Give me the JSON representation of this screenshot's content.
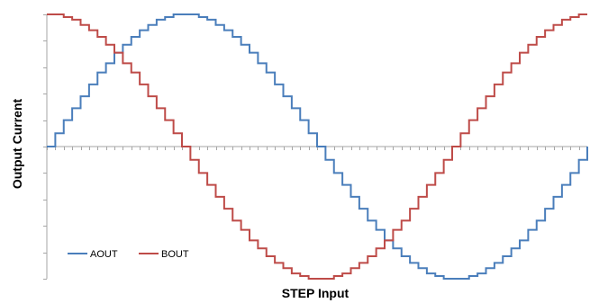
{
  "chart_data": {
    "type": "line",
    "style": "step",
    "xlabel": "STEP Input",
    "ylabel": "Output Current",
    "x": [
      0,
      1,
      2,
      3,
      4,
      5,
      6,
      7,
      8,
      9,
      10,
      11,
      12,
      13,
      14,
      15,
      16,
      17,
      18,
      19,
      20,
      21,
      22,
      23,
      24,
      25,
      26,
      27,
      28,
      29,
      30,
      31,
      32,
      33,
      34,
      35,
      36,
      37,
      38,
      39,
      40,
      41,
      42,
      43,
      44,
      45,
      46,
      47,
      48,
      49,
      50,
      51,
      52,
      53,
      54,
      55,
      56,
      57,
      58,
      59,
      60,
      61,
      62,
      63,
      64
    ],
    "xlim": [
      0,
      64
    ],
    "ylim": [
      -1,
      1
    ],
    "grid": false,
    "x_tick_count": 64,
    "y_tick_step": 0.2,
    "legend_position": "bottom-left",
    "series": [
      {
        "name": "AOUT",
        "color": "#4a7ebb",
        "values": [
          0,
          0.1,
          0.2,
          0.29,
          0.38,
          0.47,
          0.56,
          0.63,
          0.71,
          0.77,
          0.83,
          0.88,
          0.92,
          0.96,
          0.98,
          1.0,
          1.0,
          1.0,
          0.98,
          0.96,
          0.92,
          0.88,
          0.83,
          0.77,
          0.71,
          0.63,
          0.56,
          0.47,
          0.38,
          0.29,
          0.2,
          0.1,
          0,
          -0.1,
          -0.2,
          -0.29,
          -0.38,
          -0.47,
          -0.56,
          -0.63,
          -0.71,
          -0.77,
          -0.83,
          -0.88,
          -0.92,
          -0.96,
          -0.98,
          -1.0,
          -1.0,
          -1.0,
          -0.98,
          -0.96,
          -0.92,
          -0.88,
          -0.83,
          -0.77,
          -0.71,
          -0.63,
          -0.56,
          -0.47,
          -0.38,
          -0.29,
          -0.2,
          -0.1,
          0
        ]
      },
      {
        "name": "BOUT",
        "color": "#be4b48",
        "values": [
          1.0,
          1.0,
          0.98,
          0.96,
          0.92,
          0.88,
          0.83,
          0.77,
          0.71,
          0.63,
          0.56,
          0.47,
          0.38,
          0.29,
          0.2,
          0.1,
          0,
          -0.1,
          -0.2,
          -0.29,
          -0.38,
          -0.47,
          -0.56,
          -0.63,
          -0.71,
          -0.77,
          -0.83,
          -0.88,
          -0.92,
          -0.96,
          -0.98,
          -1.0,
          -1.0,
          -1.0,
          -0.98,
          -0.96,
          -0.92,
          -0.88,
          -0.83,
          -0.77,
          -0.71,
          -0.63,
          -0.56,
          -0.47,
          -0.38,
          -0.29,
          -0.2,
          -0.1,
          0,
          0.1,
          0.2,
          0.29,
          0.38,
          0.47,
          0.56,
          0.63,
          0.71,
          0.77,
          0.83,
          0.88,
          0.92,
          0.96,
          0.98,
          1.0,
          1.0
        ]
      }
    ]
  }
}
